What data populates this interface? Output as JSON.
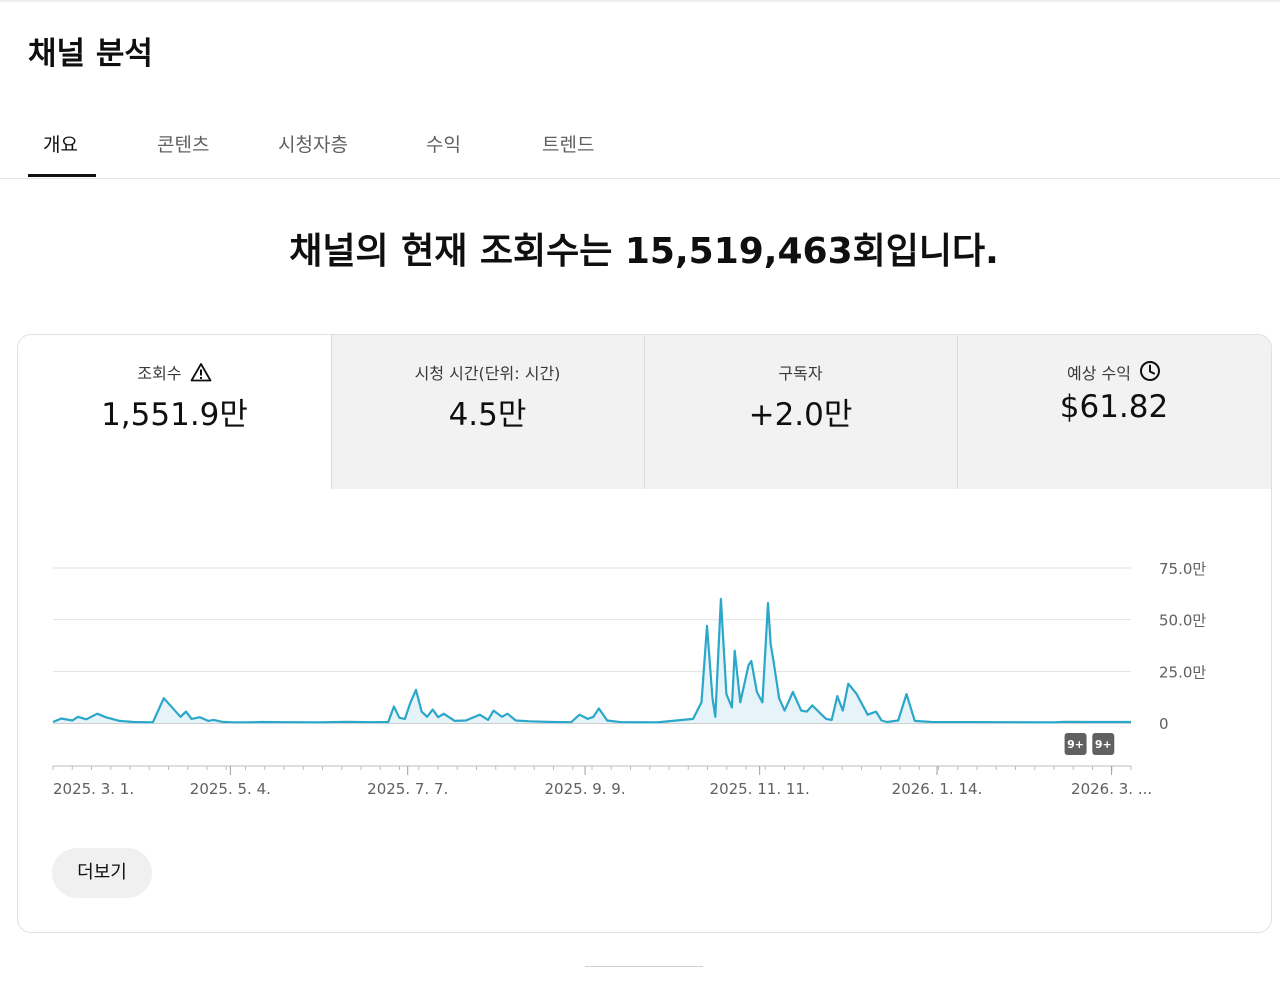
{
  "page": {
    "title": "채널 분석"
  },
  "tabs": [
    {
      "label": "개요",
      "active": true
    },
    {
      "label": "콘텐츠",
      "active": false
    },
    {
      "label": "시청자층",
      "active": false
    },
    {
      "label": "수익",
      "active": false
    },
    {
      "label": "트렌드",
      "active": false
    }
  ],
  "headline": "채널의 현재 조회수는 15,519,463회입니다.",
  "metrics": [
    {
      "label": "조회수",
      "value": "1,551.9만",
      "icon": "warning-icon",
      "selected": true
    },
    {
      "label": "시청 시간(단위: 시간)",
      "value": "4.5만",
      "icon": "",
      "selected": false
    },
    {
      "label": "구독자",
      "value": "+2.0만",
      "icon": "",
      "selected": false
    },
    {
      "label": "예상 수익",
      "value": "$61.82",
      "icon": "clock-icon",
      "selected": false
    }
  ],
  "more_button": "더보기",
  "colors": {
    "line": "#2aa7c9",
    "fill": "#e6f4f9",
    "active_tab": "#0f0f0f",
    "badge": "#606060"
  },
  "chart_data": {
    "type": "line",
    "title": "",
    "xlabel": "",
    "ylabel": "",
    "x_ticks": [
      "2025. 3. 1.",
      "2025. 5. 4.",
      "2025. 7. 7.",
      "2025. 9. 9.",
      "2025. 11. 11.",
      "2026. 1. 14.",
      "2026. 3. ..."
    ],
    "y_ticks": [
      "75.0만",
      "50.0만",
      "25.0만",
      "0"
    ],
    "ylim": [
      0,
      750000
    ],
    "grid": true,
    "annotations": [
      "9+",
      "9+"
    ],
    "series": [
      {
        "x": [
          "2025-03-01",
          "2025-03-04",
          "2025-03-08",
          "2025-03-10",
          "2025-03-13",
          "2025-03-17",
          "2025-03-20",
          "2025-03-25",
          "2025-03-30",
          "2025-04-06",
          "2025-04-10",
          "2025-04-15",
          "2025-04-16",
          "2025-04-18",
          "2025-04-20",
          "2025-04-23",
          "2025-04-26",
          "2025-04-28",
          "2025-05-01",
          "2025-05-04",
          "2025-05-10",
          "2025-05-15",
          "2025-05-25",
          "2025-06-05",
          "2025-06-15",
          "2025-06-25",
          "2025-06-30",
          "2025-07-02",
          "2025-07-04",
          "2025-07-06",
          "2025-07-08",
          "2025-07-10",
          "2025-07-12",
          "2025-07-14",
          "2025-07-16",
          "2025-07-18",
          "2025-07-20",
          "2025-07-24",
          "2025-07-28",
          "2025-08-02",
          "2025-08-05",
          "2025-08-07",
          "2025-08-10",
          "2025-08-12",
          "2025-08-15",
          "2025-08-20",
          "2025-08-28",
          "2025-09-04",
          "2025-09-07",
          "2025-09-10",
          "2025-09-12",
          "2025-09-14",
          "2025-09-17",
          "2025-09-22",
          "2025-10-05",
          "2025-10-18",
          "2025-10-21",
          "2025-10-23",
          "2025-10-25",
          "2025-10-26",
          "2025-10-28",
          "2025-10-30",
          "2025-11-01",
          "2025-11-02",
          "2025-11-04",
          "2025-11-06",
          "2025-11-07",
          "2025-11-08",
          "2025-11-10",
          "2025-11-12",
          "2025-11-14",
          "2025-11-15",
          "2025-11-16",
          "2025-11-18",
          "2025-11-20",
          "2025-11-23",
          "2025-11-26",
          "2025-11-28",
          "2025-11-30",
          "2025-12-03",
          "2025-12-05",
          "2025-12-07",
          "2025-12-09",
          "2025-12-11",
          "2025-12-13",
          "2025-12-16",
          "2025-12-20",
          "2025-12-23",
          "2025-12-25",
          "2025-12-27",
          "2025-12-31",
          "2026-01-03",
          "2026-01-06",
          "2026-01-12",
          "2026-02-10",
          "2026-02-25",
          "2026-03-01",
          "2026-03-10"
        ],
        "values": [
          5000,
          22000,
          12000,
          30000,
          18000,
          45000,
          28000,
          10000,
          5000,
          3000,
          120000,
          45000,
          30000,
          55000,
          20000,
          28000,
          10000,
          15000,
          6000,
          4000,
          3000,
          5000,
          4000,
          3000,
          6000,
          4000,
          5000,
          80000,
          25000,
          20000,
          100000,
          160000,
          55000,
          30000,
          65000,
          28000,
          45000,
          10000,
          12000,
          40000,
          15000,
          60000,
          30000,
          45000,
          12000,
          8000,
          5000,
          4000,
          40000,
          20000,
          30000,
          70000,
          12000,
          4000,
          3000,
          20000,
          100000,
          470000,
          120000,
          30000,
          600000,
          140000,
          75000,
          350000,
          100000,
          220000,
          280000,
          300000,
          150000,
          100000,
          580000,
          380000,
          300000,
          120000,
          60000,
          150000,
          60000,
          55000,
          85000,
          45000,
          20000,
          15000,
          130000,
          60000,
          190000,
          140000,
          40000,
          55000,
          12000,
          5000,
          12000,
          140000,
          10000,
          5000,
          4000,
          3000,
          6000,
          5000
        ]
      }
    ]
  }
}
